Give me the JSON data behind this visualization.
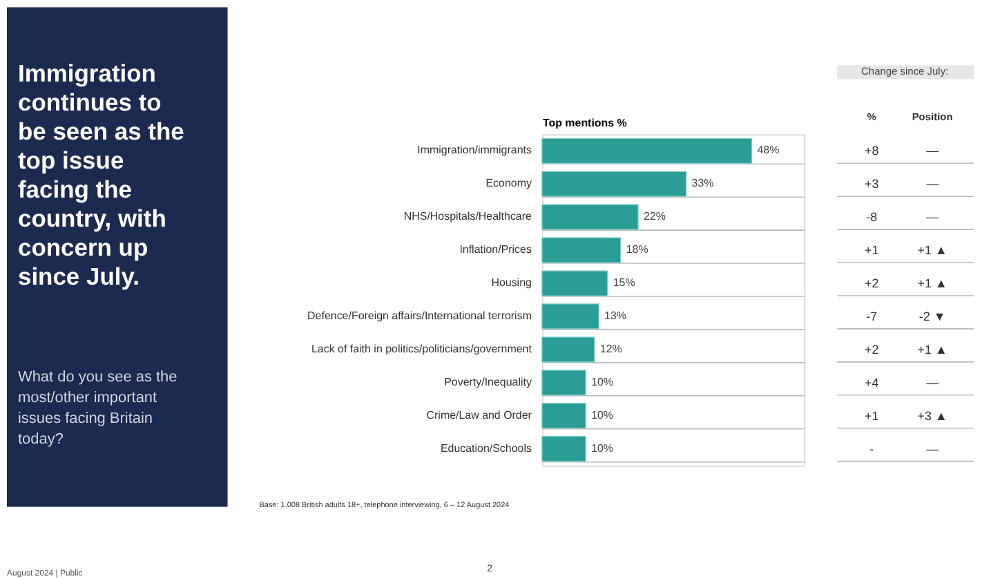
{
  "chart_data": {
    "type": "bar",
    "orientation": "horizontal",
    "title": "Immigration continues to be seen as the top issue facing the country, with concern up since July.",
    "subtitle": "What do you see as the most/other important issues facing Britain today?",
    "xlabel": "Top mentions %",
    "categories": [
      "Immigration/immigrants",
      "Economy",
      "NHS/Hospitals/Healthcare",
      "Inflation/Prices",
      "Housing",
      "Defence/Foreign affairs/International terrorism",
      "Lack of faith in politics/politicians/government",
      "Poverty/Inequality",
      "Crime/Law and Order",
      "Education/Schools"
    ],
    "values": [
      48,
      33,
      22,
      18,
      15,
      13,
      12,
      10,
      10,
      10
    ],
    "value_labels": [
      "48%",
      "33%",
      "22%",
      "18%",
      "15%",
      "13%",
      "12%",
      "10%",
      "10%",
      "10%"
    ],
    "color": "#2a9d96",
    "grid": "y",
    "annotations": [
      "Change since July:",
      "%",
      "Position",
      "+8",
      "+3",
      "-8",
      "+1",
      "+2",
      "-7",
      "+2",
      "+4",
      "+1",
      "-",
      "—",
      "—",
      "—",
      "+1 ▲",
      "+1 ▲",
      "-2 ▼",
      "+1 ▲",
      "—",
      "+3 ▲",
      "—",
      "Base: 1,008 British adults 18+, telephone interviewing, 6 – 12 August 2024",
      "August 2024 | Public",
      "2"
    ]
  }
}
